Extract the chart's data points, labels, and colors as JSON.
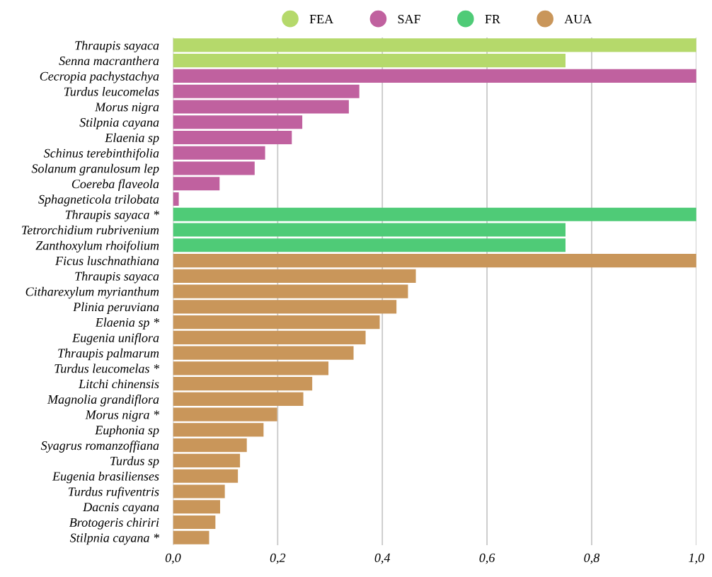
{
  "chart_data": {
    "type": "bar",
    "orientation": "horizontal",
    "categories": [
      "Thraupis sayaca",
      "Senna macranthera",
      "Cecropia pachystachya",
      "Turdus leucomelas",
      "Morus nigra",
      "Stilpnia cayana",
      "Elaenia sp",
      "Schinus terebinthifolia",
      "Solanum granulosum lep",
      "Coereba flaveola",
      "Sphagneticola trilobata",
      "Thraupis sayaca *",
      "Tetrorchidium rubrivenium",
      "Zanthoxylum rhoifolium",
      "Ficus luschnathiana",
      "Thraupis sayaca",
      "Citharexylum myrianthum",
      "Plinia peruviana",
      "Elaenia sp *",
      "Eugenia uniflora",
      "Thraupis palmarum",
      "Turdus leucomelas *",
      "Litchi chinensis",
      "Magnolia grandiflora",
      "Morus nigra *",
      "Euphonia sp",
      "Syagrus romanzoffiana",
      "Turdus sp",
      "Eugenia brasilienses",
      "Turdus rufiventris",
      "Dacnis cayana",
      "Brotogeris chiriri",
      "Stilpnia cayana *"
    ],
    "series": [
      {
        "name": "FEA",
        "color": "#b5d96b",
        "values": [
          1.0,
          0.75,
          null,
          null,
          null,
          null,
          null,
          null,
          null,
          null,
          null,
          null,
          null,
          null,
          null,
          null,
          null,
          null,
          null,
          null,
          null,
          null,
          null,
          null,
          null,
          null,
          null,
          null,
          null,
          null,
          null,
          null,
          null
        ]
      },
      {
        "name": "SAF",
        "color": "#c0619f",
        "values": [
          null,
          null,
          1.0,
          0.356,
          0.336,
          0.247,
          0.227,
          0.176,
          0.156,
          0.089,
          0.011,
          null,
          null,
          null,
          null,
          null,
          null,
          null,
          null,
          null,
          null,
          null,
          null,
          null,
          null,
          null,
          null,
          null,
          null,
          null,
          null,
          null,
          null
        ]
      },
      {
        "name": "FR",
        "color": "#4fcb77",
        "values": [
          null,
          null,
          null,
          null,
          null,
          null,
          null,
          null,
          null,
          null,
          null,
          1.0,
          0.75,
          0.75,
          null,
          null,
          null,
          null,
          null,
          null,
          null,
          null,
          null,
          null,
          null,
          null,
          null,
          null,
          null,
          null,
          null,
          null,
          null
        ]
      },
      {
        "name": "AUA",
        "color": "#c9965a",
        "values": [
          null,
          null,
          null,
          null,
          null,
          null,
          null,
          null,
          null,
          null,
          null,
          null,
          null,
          null,
          1.0,
          0.464,
          0.449,
          0.427,
          0.395,
          0.368,
          0.345,
          0.297,
          0.266,
          0.249,
          0.199,
          0.173,
          0.141,
          0.128,
          0.124,
          0.099,
          0.09,
          0.081,
          0.069
        ]
      }
    ],
    "xlim": [
      0,
      1.0
    ],
    "xticks": [
      {
        "value": 0,
        "label": "0,0"
      },
      {
        "value": 0.2,
        "label": "0,2"
      },
      {
        "value": 0.4,
        "label": "0,4"
      },
      {
        "value": 0.6,
        "label": "0,6"
      },
      {
        "value": 0.8,
        "label": "0,8"
      },
      {
        "value": 1.0,
        "label": "1,0"
      }
    ],
    "grid": "x",
    "legend": "top"
  }
}
